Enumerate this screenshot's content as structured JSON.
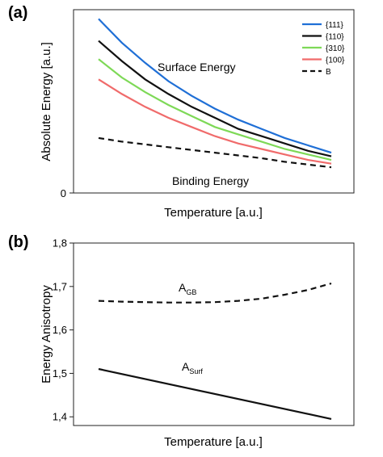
{
  "chart_data": [
    {
      "panel_label": "(a)",
      "type": "line",
      "xlabel": "Temperature [a.u.]",
      "ylabel": "Absolute Energy [a.u.]",
      "ytick_labels": [
        "0"
      ],
      "annotations": [
        "Surface Energy",
        "Binding Energy"
      ],
      "legend": "top-right",
      "ylim": [
        0,
        100
      ],
      "xlim": [
        0,
        1
      ],
      "series": [
        {
          "name": "{111}",
          "color": "#1f6fd6",
          "style": "solid",
          "x": [
            0,
            0.1,
            0.2,
            0.3,
            0.4,
            0.5,
            0.6,
            0.7,
            0.8,
            0.9,
            1.0
          ],
          "y": [
            95,
            82,
            71,
            61,
            53,
            46,
            40,
            35,
            30,
            26,
            22
          ]
        },
        {
          "name": "{110}",
          "color": "#111111",
          "style": "solid",
          "x": [
            0,
            0.1,
            0.2,
            0.3,
            0.4,
            0.5,
            0.6,
            0.7,
            0.8,
            0.9,
            1.0
          ],
          "y": [
            83,
            72,
            62,
            54,
            47,
            41,
            35,
            31,
            27,
            23,
            20
          ]
        },
        {
          "name": "{310}",
          "color": "#7ed957",
          "style": "solid",
          "x": [
            0,
            0.1,
            0.2,
            0.3,
            0.4,
            0.5,
            0.6,
            0.7,
            0.8,
            0.9,
            1.0
          ],
          "y": [
            73,
            63,
            55,
            48,
            42,
            36,
            32,
            28,
            24,
            21,
            18
          ]
        },
        {
          "name": "{100}",
          "color": "#f06b6b",
          "style": "solid",
          "x": [
            0,
            0.1,
            0.2,
            0.3,
            0.4,
            0.5,
            0.6,
            0.7,
            0.8,
            0.9,
            1.0
          ],
          "y": [
            62,
            54,
            47,
            41,
            36,
            31,
            27,
            24,
            21,
            18,
            16
          ]
        },
        {
          "name": "B",
          "color": "#111111",
          "style": "dashed",
          "x": [
            0,
            0.1,
            0.2,
            0.3,
            0.4,
            0.5,
            0.6,
            0.7,
            0.8,
            0.9,
            1.0
          ],
          "y": [
            30,
            28,
            26.5,
            25,
            23.5,
            22,
            20.5,
            19,
            17,
            15.5,
            14
          ]
        }
      ]
    },
    {
      "panel_label": "(b)",
      "type": "line",
      "xlabel": "Temperature [a.u.]",
      "ylabel": "Energy Anisotropy",
      "ylim": [
        1.38,
        1.8
      ],
      "xlim": [
        0,
        1
      ],
      "yticks": [
        1.4,
        1.5,
        1.6,
        1.7,
        1.8
      ],
      "ytick_labels": [
        "1,4",
        "1,5",
        "1,6",
        "1,7",
        "1,8"
      ],
      "series": [
        {
          "label_main": "A",
          "label_sub": "GB",
          "color": "#111111",
          "style": "dashed",
          "x": [
            0,
            0.1,
            0.2,
            0.3,
            0.4,
            0.5,
            0.6,
            0.7,
            0.8,
            0.9,
            1.0
          ],
          "y": [
            1.667,
            1.665,
            1.664,
            1.663,
            1.663,
            1.664,
            1.667,
            1.672,
            1.681,
            1.692,
            1.707
          ]
        },
        {
          "label_main": "A",
          "label_sub": "Surf",
          "color": "#111111",
          "style": "solid",
          "x": [
            0,
            1.0
          ],
          "y": [
            1.51,
            1.395
          ]
        }
      ]
    }
  ]
}
